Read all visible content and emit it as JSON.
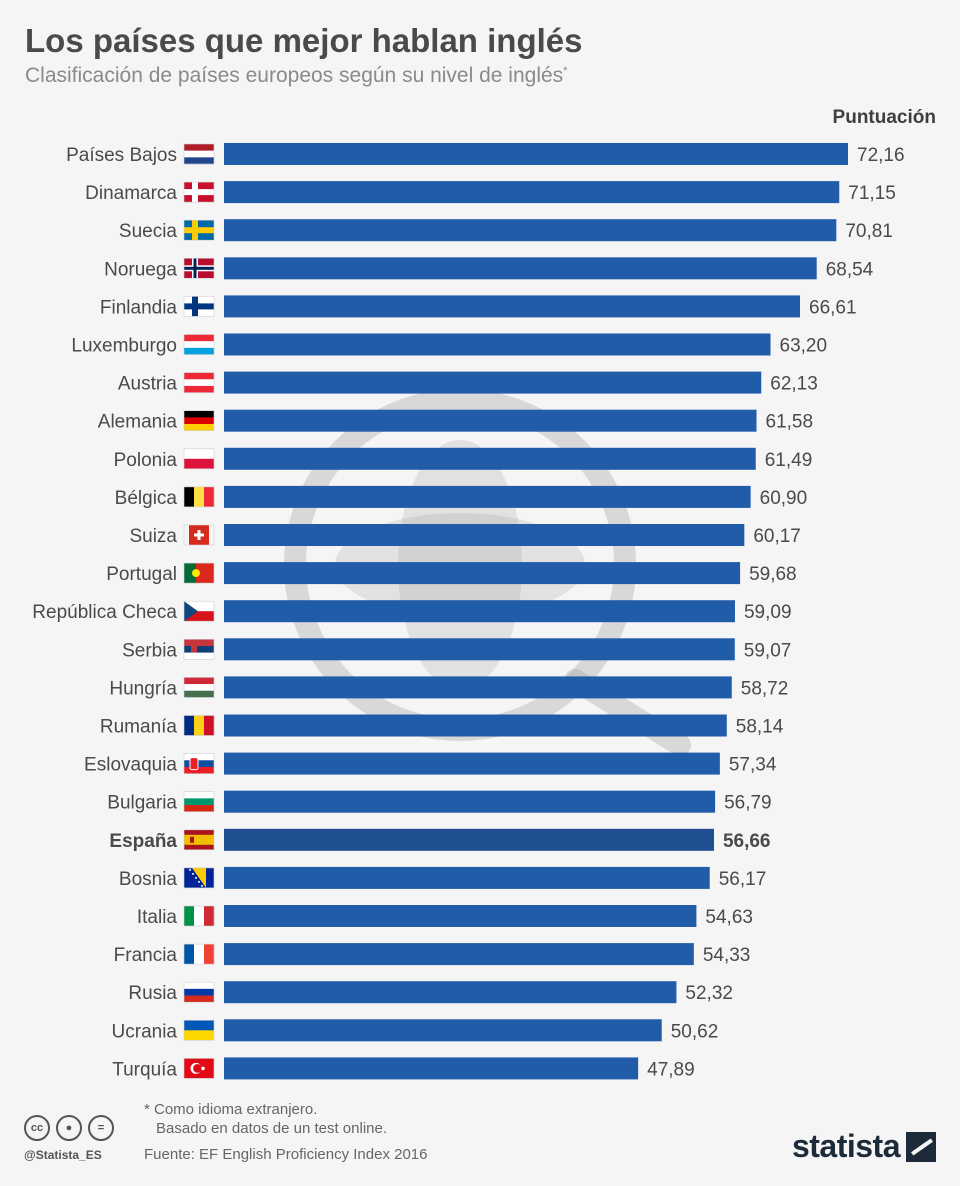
{
  "header": {
    "title": "Los países que mejor hablan inglés",
    "subtitle": "Clasificación de países europeos según su nivel de inglés",
    "subtitle_mark": "*",
    "column_label": "Puntuación"
  },
  "colors": {
    "bar": "#215ca9",
    "bar_highlight": "#1f4f90",
    "label": "#4a4a4a",
    "value": "#4a4a4a"
  },
  "chart_data": {
    "type": "bar",
    "orientation": "horizontal",
    "title": "Los países que mejor hablan inglés",
    "xlabel": "Puntuación",
    "ylabel": "",
    "xlim": [
      0,
      72.16
    ],
    "highlight": "España",
    "categories": [
      "Países Bajos",
      "Dinamarca",
      "Suecia",
      "Noruega",
      "Finlandia",
      "Luxemburgo",
      "Austria",
      "Alemania",
      "Polonia",
      "Bélgica",
      "Suiza",
      "Portugal",
      "República Checa",
      "Serbia",
      "Hungría",
      "Rumanía",
      "Eslovaquia",
      "Bulgaria",
      "España",
      "Bosnia",
      "Italia",
      "Francia",
      "Rusia",
      "Ucrania",
      "Turquía"
    ],
    "values": [
      72.16,
      71.15,
      70.81,
      68.54,
      66.61,
      63.2,
      62.13,
      61.58,
      61.49,
      60.9,
      60.17,
      59.68,
      59.09,
      59.07,
      58.72,
      58.14,
      57.34,
      56.79,
      56.66,
      56.17,
      54.63,
      54.33,
      52.32,
      50.62,
      47.89
    ],
    "value_labels": [
      "72,16",
      "71,15",
      "70,81",
      "68,54",
      "66,61",
      "63,20",
      "62,13",
      "61,58",
      "61,49",
      "60,90",
      "60,17",
      "59,68",
      "59,09",
      "59,07",
      "58,72",
      "58,14",
      "57,34",
      "56,79",
      "56,66",
      "56,17",
      "54,63",
      "54,33",
      "52,32",
      "50,62",
      "47,89"
    ],
    "flags": [
      "nl",
      "dk",
      "se",
      "no",
      "fi",
      "lu",
      "at",
      "de",
      "pl",
      "be",
      "ch",
      "pt",
      "cz",
      "rs",
      "hu",
      "ro",
      "sk",
      "bg",
      "es",
      "ba",
      "it",
      "fr",
      "ru",
      "ua",
      "tr"
    ]
  },
  "footer": {
    "note_line1": "* Como idioma extranjero.",
    "note_line2": "Basado en datos de un test online.",
    "source": "Fuente: EF English Proficiency Index 2016",
    "handle": "@Statista_ES",
    "brand": "statista",
    "license_icons": [
      "cc-icon",
      "by-icon",
      "nd-icon"
    ]
  }
}
